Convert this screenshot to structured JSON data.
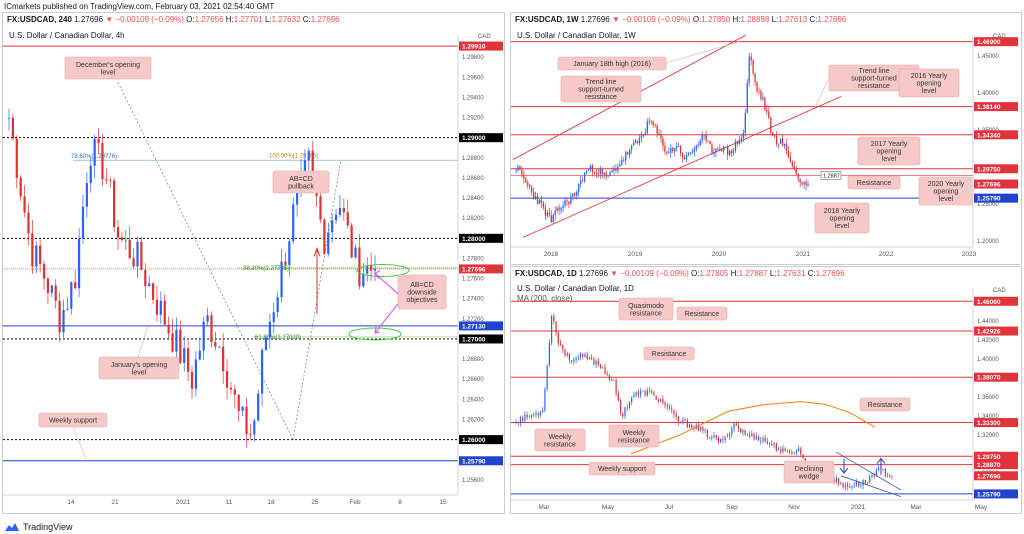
{
  "header": {
    "line": "ICmarkets published on TradingView.com, February 03, 2021 02:54:40 GMT"
  },
  "footer": {
    "brand": "TradingView"
  },
  "colors": {
    "up": "#2962ff",
    "down": "#e03030",
    "resistance": "#e0343c",
    "support": "#2244cc",
    "label_bg": "#f6c9c9",
    "label_border": "#e8a8a8",
    "ma": "#ef8a17",
    "price_tag": "#e0343c"
  },
  "panels": {
    "left": {
      "symbol": "FX:USDCAD, 240",
      "price": "1.27696",
      "change": "▼ −0.00109 (−0.09%)",
      "ohlc": {
        "o": "1.27656",
        "h": "1.27701",
        "l": "1.27632",
        "c": "1.27696"
      },
      "subtitle": "U.S. Dollar / Canadian Dollar, 4h"
    },
    "top_right": {
      "symbol": "FX:USDCAD, 1W",
      "price": "1.27696",
      "change": "▼ −0.00109 (−0.09%)",
      "ohlc": {
        "o": "1.27850",
        "h": "1.28898",
        "l": "1.27613",
        "c": "1.27696"
      },
      "subtitle": "U.S. Dollar / Canadian Dollar, 1W"
    },
    "bottom_right": {
      "symbol": "FX:USDCAD, 1D",
      "price": "1.27696",
      "change": "▼ −0.00109 (−0.09%)",
      "ohlc": {
        "o": "1.27805",
        "h": "1.27887",
        "l": "1.27631",
        "c": "1.27696"
      },
      "subtitle": "U.S. Dollar / Canadian Dollar, 1D",
      "subtitle2": "MA (200, close)"
    }
  },
  "chart_data": [
    {
      "type": "candlestick",
      "title": "U.S. Dollar / Canadian Dollar, 4h",
      "ylim": [
        1.2545,
        1.3002
      ],
      "currency_label": "CAD",
      "x_ticks": [
        "14",
        "21",
        "2021",
        "11",
        "18",
        "25",
        "Feb",
        "8",
        "15"
      ],
      "y_ticks": [
        "1.29800",
        "1.29600",
        "1.29400",
        "1.29200",
        "1.28800",
        "1.28600",
        "1.28400",
        "1.28200",
        "1.27800",
        "1.27600",
        "1.27400",
        "1.27200",
        "1.26800",
        "1.26600",
        "1.26400",
        "1.26200",
        "1.25800",
        "1.25600"
      ],
      "price_tags": [
        {
          "value": 1.2991,
          "label": "1.29910",
          "style": "red"
        },
        {
          "value": 1.29,
          "label": "1.29000",
          "style": "black"
        },
        {
          "value": 1.28,
          "label": "1.28000",
          "style": "black"
        },
        {
          "value": 1.27696,
          "label": "1.27696",
          "style": "red"
        },
        {
          "value": 1.2713,
          "label": "1.27130",
          "style": "blue"
        },
        {
          "value": 1.27,
          "label": "1.27000",
          "style": "black"
        },
        {
          "value": 1.26,
          "label": "1.26000",
          "style": "black"
        },
        {
          "value": 1.2579,
          "label": "1.25790",
          "style": "blue"
        }
      ],
      "fib_labels": [
        {
          "text": "78.60%(1.28776)",
          "value": 1.28776
        },
        {
          "text": "100.00%(1.28785)",
          "value": 1.28785
        },
        {
          "text": "38.20%(1.27705)",
          "value": 1.27705
        },
        {
          "text": "61.80%(1.27020)",
          "value": 1.2702
        }
      ],
      "annotations": [
        {
          "text": "December's opening level"
        },
        {
          "text": "AB=CD pullback"
        },
        {
          "text": "AB=CD downside objectives"
        },
        {
          "text": "January's opening level"
        },
        {
          "text": "Weekly support"
        }
      ],
      "series_close": [
        1.292,
        1.289,
        1.2865,
        1.284,
        1.281,
        1.2835,
        1.2805,
        1.278,
        1.2795,
        1.276,
        1.274,
        1.272,
        1.274,
        1.271,
        1.273,
        1.275,
        1.279,
        1.283,
        1.287,
        1.291,
        1.287,
        1.283,
        1.28,
        1.278,
        1.277,
        1.2745,
        1.275,
        1.272,
        1.27,
        1.268,
        1.266,
        1.271,
        1.275,
        1.278,
        1.274,
        1.27,
        1.267,
        1.265,
        1.264,
        1.269,
        1.272,
        1.274,
        1.271,
        1.269,
        1.265,
        1.263,
        1.261,
        1.2605,
        1.265,
        1.27,
        1.271,
        1.274,
        1.278,
        1.282,
        1.286,
        1.284,
        1.28,
        1.283,
        1.278,
        1.276,
        1.277
      ]
    },
    {
      "type": "candlestick",
      "title": "U.S. Dollar / Canadian Dollar, 1W",
      "ylim": [
        1.192,
        1.478
      ],
      "currency_label": "CAD",
      "x_ticks": [
        "2018",
        "2019",
        "2020",
        "2021",
        "2022",
        "2023"
      ],
      "y_ticks": [
        "1.45000",
        "1.40000",
        "1.35000",
        "1.25000",
        "1.20000"
      ],
      "price_tags": [
        {
          "value": 1.469,
          "label": "1.46900",
          "style": "red"
        },
        {
          "value": 1.3814,
          "label": "1.38140",
          "style": "red"
        },
        {
          "value": 1.3434,
          "label": "1.34340",
          "style": "red"
        },
        {
          "value": 1.2975,
          "label": "1.29750",
          "style": "red"
        },
        {
          "value": 1.27696,
          "label": "1.27696",
          "style": "red"
        },
        {
          "value": 1.2579,
          "label": "1.25790",
          "style": "blue"
        }
      ],
      "inline_price": "1.2887",
      "annotations": [
        {
          "text": "January 18th high (2016)"
        },
        {
          "text": "Trend line support-turned resistance"
        },
        {
          "text": "Trend line support-turned resistance"
        },
        {
          "text": "2016 Yearly opening level"
        },
        {
          "text": "2017 Yearly opening level"
        },
        {
          "text": "Resistance"
        },
        {
          "text": "2020 Yearly opening level"
        },
        {
          "text": "2018 Yearly opening level"
        }
      ]
    },
    {
      "type": "candlestick",
      "title": "U.S. Dollar / Canadian Dollar, 1D",
      "ylim": [
        1.2515,
        1.4735
      ],
      "currency_label": "CAD",
      "x_ticks": [
        "Mar",
        "May",
        "Jul",
        "Sep",
        "Nov",
        "2021",
        "Mar",
        "May"
      ],
      "y_ticks": [
        "1.44000",
        "1.42000",
        "1.40000",
        "1.36000",
        "1.34000",
        "1.32000",
        "1.30000",
        "1.28000"
      ],
      "price_tags": [
        {
          "value": 1.4606,
          "label": "1.46060",
          "style": "red"
        },
        {
          "value": 1.42926,
          "label": "1.42926",
          "style": "red"
        },
        {
          "value": 1.3807,
          "label": "1.38070",
          "style": "red"
        },
        {
          "value": 1.333,
          "label": "1.33300",
          "style": "red"
        },
        {
          "value": 1.2975,
          "label": "1.29750",
          "style": "red"
        },
        {
          "value": 1.2887,
          "label": "1.28870",
          "style": "red"
        },
        {
          "value": 1.27696,
          "label": "1.27696",
          "style": "red"
        },
        {
          "value": 1.2579,
          "label": "1.25790",
          "style": "blue"
        }
      ],
      "annotations": [
        {
          "text": "Quasimodo resistance"
        },
        {
          "text": "Resistance"
        },
        {
          "text": "Resistance"
        },
        {
          "text": "Resistance"
        },
        {
          "text": "Weekly resistance"
        },
        {
          "text": "Weekly resistance"
        },
        {
          "text": "Weekly support"
        },
        {
          "text": "Declining wedge"
        }
      ]
    }
  ]
}
